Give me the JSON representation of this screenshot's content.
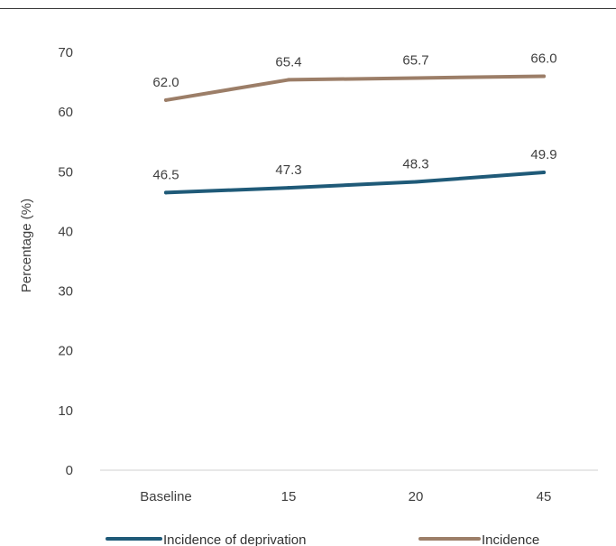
{
  "chart_data": {
    "type": "line",
    "categories": [
      "Baseline",
      "15",
      "20",
      "45"
    ],
    "series": [
      {
        "name": "Incidence of deprivation",
        "values": [
          46.5,
          47.3,
          48.3,
          49.9
        ],
        "labels": [
          "46.5",
          "47.3",
          "48.3",
          "49.9"
        ],
        "color": "#1f5a78"
      },
      {
        "name": "Incidence",
        "values": [
          62.0,
          65.4,
          65.7,
          66.0
        ],
        "labels": [
          "62.0",
          "65.4",
          "65.7",
          "66.0"
        ],
        "color": "#9c7e68"
      }
    ],
    "title": "",
    "xlabel": "",
    "ylabel": "Percentage (%)",
    "ylim": [
      0,
      70
    ],
    "yticks": [
      "0",
      "10",
      "20",
      "30",
      "40",
      "50",
      "60",
      "70"
    ],
    "grid": false,
    "legend_position": "bottom"
  }
}
